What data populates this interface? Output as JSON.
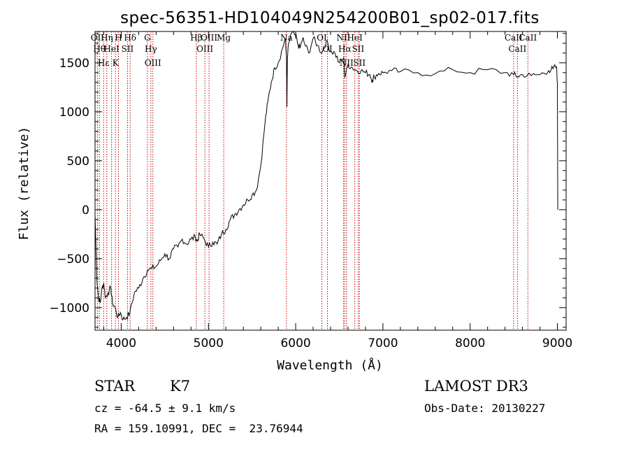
{
  "chart_data": {
    "type": "line",
    "title": "spec-56351-HD104049N254200B01_sp02-017.fits",
    "xlabel": "Wavelength (Å)",
    "ylabel": "Flux (relative)",
    "xlim": [
      3700,
      9100
    ],
    "ylim": [
      -1230,
      1820
    ],
    "xticks": [
      4000,
      5000,
      6000,
      7000,
      8000,
      9000
    ],
    "yticks": [
      -1000,
      -500,
      0,
      500,
      1000,
      1500
    ],
    "grid": false,
    "series": [
      {
        "name": "spectrum",
        "x": [
          3700,
          3720,
          3740,
          3760,
          3780,
          3800,
          3820,
          3850,
          3880,
          3900,
          3930,
          3960,
          3990,
          4020,
          4060,
          4100,
          4150,
          4200,
          4250,
          4300,
          4350,
          4400,
          4450,
          4500,
          4550,
          4600,
          4650,
          4700,
          4750,
          4800,
          4850,
          4870,
          4900,
          4950,
          5000,
          5050,
          5100,
          5150,
          5200,
          5250,
          5300,
          5350,
          5400,
          5450,
          5500,
          5550,
          5600,
          5650,
          5680,
          5720,
          5760,
          5800,
          5850,
          5880,
          5895,
          5900,
          5905,
          5920,
          5950,
          6000,
          6020,
          6050,
          6080,
          6100,
          6150,
          6200,
          6250,
          6300,
          6350,
          6400,
          6450,
          6500,
          6550,
          6563,
          6600,
          6650,
          6700,
          6750,
          6800,
          6850,
          6880,
          6900,
          6950,
          7000,
          7100,
          7200,
          7400,
          7600,
          7800,
          8000,
          8200,
          8400,
          8500,
          8542,
          8600,
          8700,
          8800,
          8900,
          8950,
          8990,
          9000,
          9005
        ],
        "y": [
          -50,
          -700,
          -900,
          -950,
          -800,
          -750,
          -900,
          -850,
          -800,
          -950,
          -1000,
          -1100,
          -1050,
          -1120,
          -1100,
          -1050,
          -850,
          -800,
          -700,
          -620,
          -600,
          -580,
          -520,
          -450,
          -500,
          -400,
          -380,
          -300,
          -350,
          -300,
          -280,
          -320,
          -250,
          -300,
          -380,
          -330,
          -350,
          -250,
          -200,
          -100,
          -50,
          0,
          50,
          100,
          150,
          200,
          450,
          900,
          1100,
          1300,
          1450,
          1500,
          1650,
          1750,
          1550,
          1050,
          1550,
          1700,
          1800,
          1780,
          1700,
          1650,
          1750,
          1700,
          1600,
          1750,
          1680,
          1600,
          1720,
          1620,
          1600,
          1500,
          1550,
          1350,
          1480,
          1450,
          1420,
          1420,
          1400,
          1380,
          1320,
          1360,
          1390,
          1400,
          1420,
          1410,
          1400,
          1390,
          1430,
          1400,
          1430,
          1400,
          1380,
          1360,
          1380,
          1370,
          1380,
          1420,
          1440,
          1460,
          1300,
          0
        ]
      }
    ],
    "lines": [
      {
        "wl": 3727,
        "labels": [
          "OII"
        ]
      },
      {
        "wl": 3750,
        "labels": [
          "Hθ"
        ]
      },
      {
        "wl": 3798,
        "labels": [
          "Hε"
        ]
      },
      {
        "wl": 3835,
        "labels": [
          "Hη"
        ]
      },
      {
        "wl": 3889,
        "labels": [
          "HeI"
        ]
      },
      {
        "wl": 3934,
        "labels": [
          "K"
        ]
      },
      {
        "wl": 3968,
        "labels": [
          "H"
        ]
      },
      {
        "wl": 4072,
        "labels": [
          "SII"
        ]
      },
      {
        "wl": 4102,
        "labels": [
          "Hδ"
        ]
      },
      {
        "wl": 4300,
        "labels": [
          "G"
        ]
      },
      {
        "wl": 4340,
        "labels": [
          "Hγ"
        ]
      },
      {
        "wl": 4363,
        "labels": [
          "OIII"
        ]
      },
      {
        "wl": 4861,
        "labels": [
          "Hβ"
        ]
      },
      {
        "wl": 4959,
        "labels": [
          "OIII"
        ]
      },
      {
        "wl": 5007,
        "labels": [
          "OIII"
        ]
      },
      {
        "wl": 5175,
        "labels": [
          "Mg"
        ]
      },
      {
        "wl": 5894,
        "labels": [
          "Na"
        ]
      },
      {
        "wl": 6300,
        "labels": [
          "OI"
        ]
      },
      {
        "wl": 6364,
        "labels": [
          "OI"
        ]
      },
      {
        "wl": 6548,
        "labels": [
          "NII"
        ]
      },
      {
        "wl": 6563,
        "labels": [
          "Hα"
        ]
      },
      {
        "wl": 6583,
        "labels": [
          "NII"
        ]
      },
      {
        "wl": 6678,
        "labels": [
          "HeI"
        ]
      },
      {
        "wl": 6716,
        "labels": [
          "SII"
        ]
      },
      {
        "wl": 6731,
        "labels": [
          "SII"
        ]
      },
      {
        "wl": 8498,
        "labels": [
          "CaII"
        ]
      },
      {
        "wl": 8542,
        "labels": [
          "CaII"
        ]
      },
      {
        "wl": 8662,
        "labels": [
          "CaII"
        ]
      }
    ]
  },
  "info": {
    "object_class": "STAR",
    "subclass": "K7",
    "survey": "LAMOST DR3",
    "cz_line": "cz = -64.5 ± 9.1 km/s",
    "obs_date_line": "Obs-Date: 20130227",
    "radec_line": "RA = 159.10991, DEC =  23.76944"
  }
}
